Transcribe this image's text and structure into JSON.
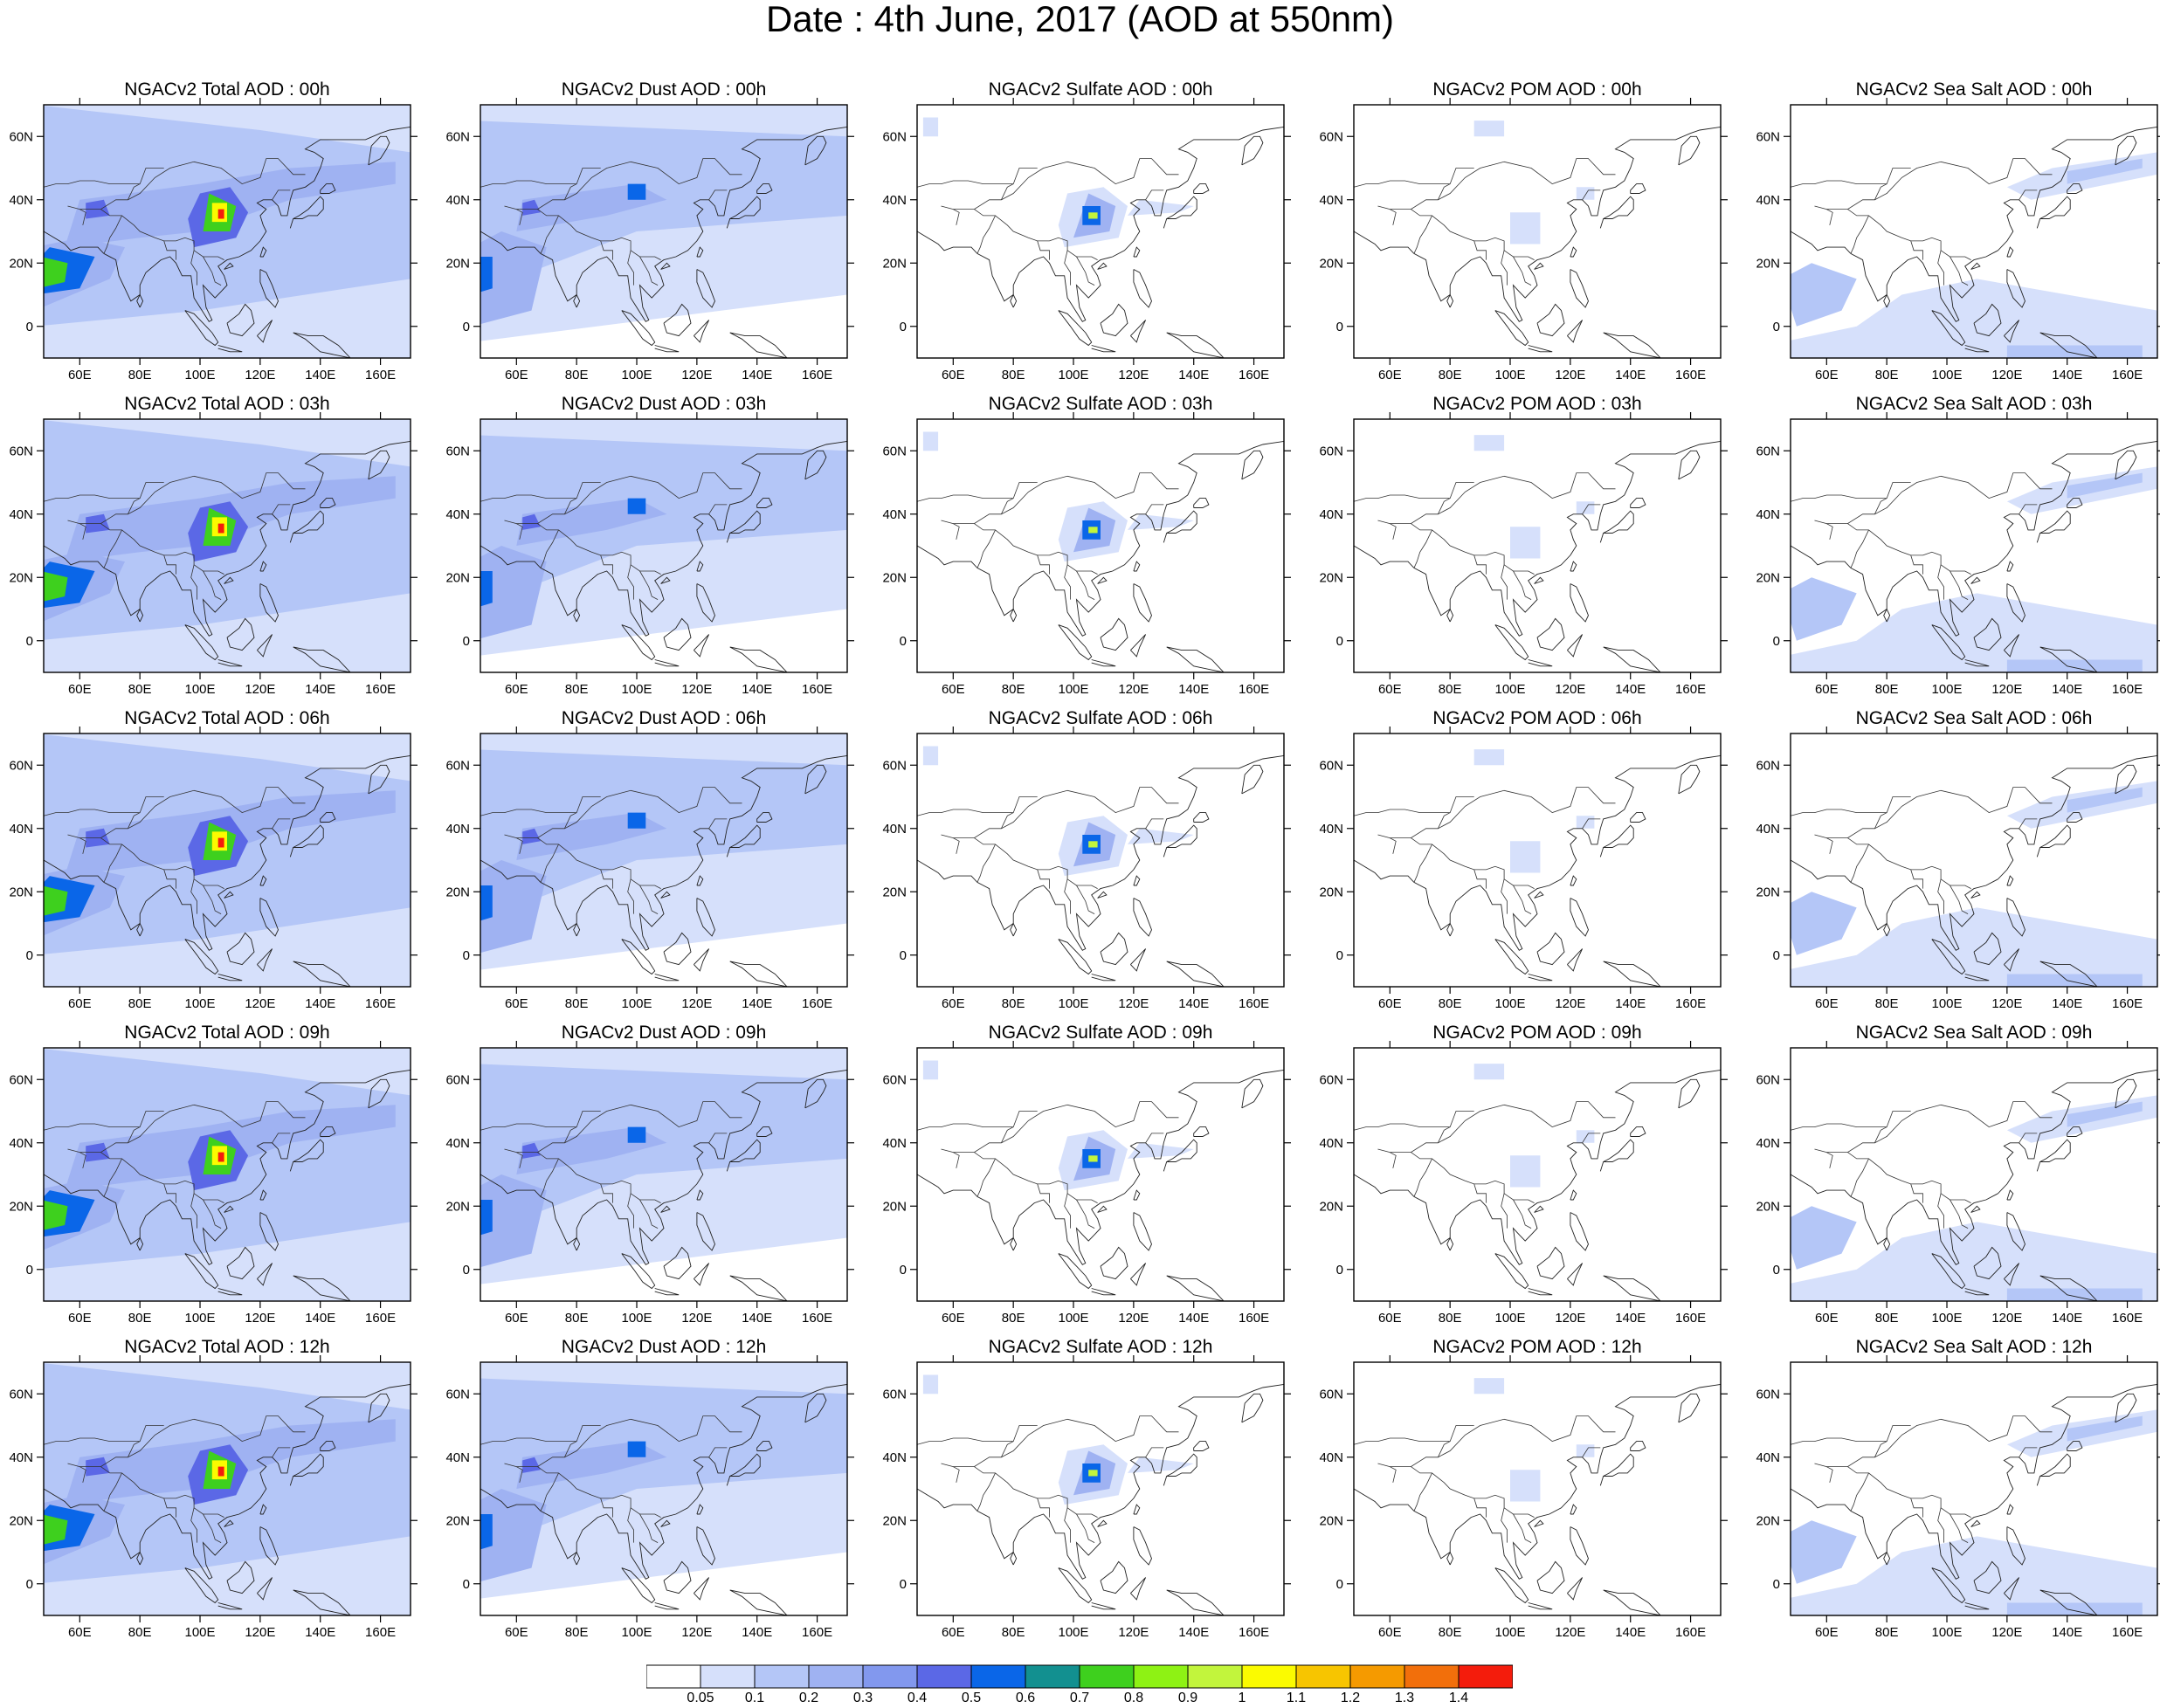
{
  "figure": {
    "title": "Date : 4th June, 2017 (AOD at 550nm)"
  },
  "axes": {
    "x_ticks": [
      "60E",
      "80E",
      "100E",
      "120E",
      "140E",
      "160E"
    ],
    "y_ticks": [
      "60N",
      "40N",
      "20N",
      "0"
    ],
    "lon_range": [
      48,
      170
    ],
    "lat_range": [
      -10,
      70
    ]
  },
  "panels": [
    {
      "title": "NGACv2 Total AOD : 00h",
      "field": "total"
    },
    {
      "title": "NGACv2 Dust AOD : 00h",
      "field": "dust"
    },
    {
      "title": "NGACv2 Sulfate AOD : 00h",
      "field": "sulfate"
    },
    {
      "title": "NGACv2 POM AOD : 00h",
      "field": "pom"
    },
    {
      "title": "NGACv2 Sea Salt AOD : 00h",
      "field": "seasalt"
    },
    {
      "title": "NGACv2 Total AOD : 03h",
      "field": "total"
    },
    {
      "title": "NGACv2 Dust AOD : 03h",
      "field": "dust"
    },
    {
      "title": "NGACv2 Sulfate AOD : 03h",
      "field": "sulfate"
    },
    {
      "title": "NGACv2 POM AOD : 03h",
      "field": "pom"
    },
    {
      "title": "NGACv2 Sea Salt AOD : 03h",
      "field": "seasalt"
    },
    {
      "title": "NGACv2 Total AOD : 06h",
      "field": "total"
    },
    {
      "title": "NGACv2 Dust AOD : 06h",
      "field": "dust"
    },
    {
      "title": "NGACv2 Sulfate AOD : 06h",
      "field": "sulfate"
    },
    {
      "title": "NGACv2 POM AOD : 06h",
      "field": "pom"
    },
    {
      "title": "NGACv2 Sea Salt AOD : 06h",
      "field": "seasalt"
    },
    {
      "title": "NGACv2 Total AOD : 09h",
      "field": "total"
    },
    {
      "title": "NGACv2 Dust AOD : 09h",
      "field": "dust"
    },
    {
      "title": "NGACv2 Sulfate AOD : 09h",
      "field": "sulfate"
    },
    {
      "title": "NGACv2 POM AOD : 09h",
      "field": "pom"
    },
    {
      "title": "NGACv2 Sea Salt  AOD : 09h",
      "field": "seasalt"
    },
    {
      "title": "NGACv2 Total AOD  : 12h",
      "field": "total"
    },
    {
      "title": "NGACv2 Dust AOD : 12h",
      "field": "dust"
    },
    {
      "title": "NGACv2 Sulfate AOD : 12h",
      "field": "sulfate"
    },
    {
      "title": "NGACv2 POM  AOD : 12h",
      "field": "pom"
    },
    {
      "title": "NGACv2 Sea Salt  AOD : 12h",
      "field": "seasalt"
    }
  ],
  "colorbar": {
    "labels": [
      "0.05",
      "0.1",
      "0.2",
      "0.3",
      "0.4",
      "0.5",
      "0.6",
      "0.7",
      "0.8",
      "0.9",
      "1",
      "1.1",
      "1.2",
      "1.3",
      "1.4"
    ],
    "colors": [
      "#ffffff",
      "#d6e0fb",
      "#b4c6f7",
      "#9fb2f2",
      "#8298ee",
      "#5b68e6",
      "#0a66e8",
      "#129090",
      "#3ed01e",
      "#8ef214",
      "#c2f53c",
      "#fbfb00",
      "#f7c500",
      "#f59a00",
      "#f26f0b",
      "#f41c0c"
    ]
  }
}
